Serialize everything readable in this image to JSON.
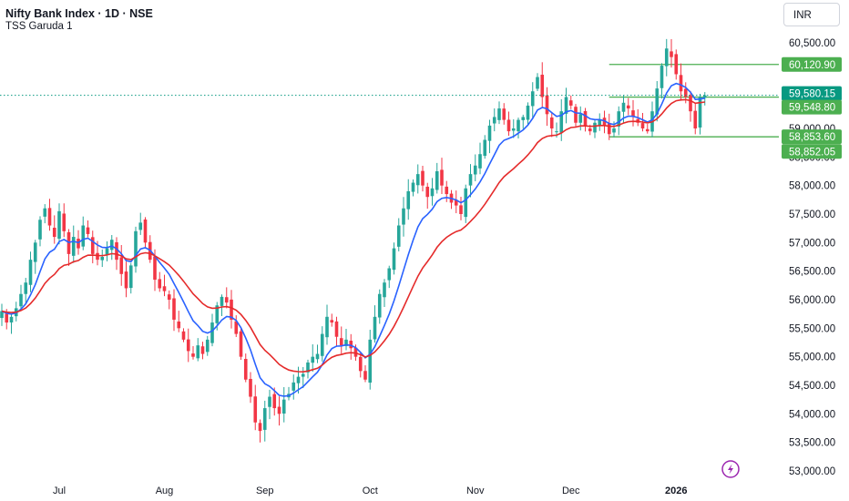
{
  "header": {
    "title": "Nifty Bank Index · 1D · NSE",
    "indicator": "TSS Garuda 1",
    "currency": "INR"
  },
  "colors": {
    "up": "#26a69a",
    "down": "#f23645",
    "ema_fast": "#2962ff",
    "ema_slow": "#e52b2b",
    "level_line": "#4caf50",
    "last_price": "#089981"
  },
  "chart_data": {
    "type": "candlestick",
    "ylim": [
      52800,
      60900
    ],
    "y_ticks": [
      "60,500.00",
      "59,000.00",
      "58,500.00",
      "58,000.00",
      "57,500.00",
      "57,000.00",
      "56,500.00",
      "56,000.00",
      "55,500.00",
      "55,000.00",
      "54,500.00",
      "54,000.00",
      "53,500.00",
      "53,000.00"
    ],
    "x_labels": [
      {
        "label": "Jul",
        "index": 12,
        "bold": false
      },
      {
        "label": "Aug",
        "index": 34,
        "bold": false
      },
      {
        "label": "Sep",
        "index": 55,
        "bold": false
      },
      {
        "label": "Oct",
        "index": 77,
        "bold": false
      },
      {
        "label": "Nov",
        "index": 99,
        "bold": false
      },
      {
        "label": "Dec",
        "index": 119,
        "bold": false
      },
      {
        "label": "2026",
        "index": 141,
        "bold": true
      }
    ],
    "close": [
      55800,
      55600,
      55700,
      55850,
      56100,
      56300,
      56700,
      57000,
      57400,
      57600,
      57300,
      57100,
      57550,
      57200,
      56800,
      57100,
      56900,
      57300,
      57150,
      56800,
      56700,
      56750,
      56900,
      57050,
      56700,
      56450,
      56200,
      56600,
      57200,
      57350,
      57000,
      56700,
      56350,
      56200,
      56150,
      56000,
      55650,
      55500,
      55300,
      55100,
      55000,
      55200,
      55050,
      55300,
      55600,
      55900,
      56050,
      55950,
      55650,
      55400,
      55000,
      54600,
      54300,
      53850,
      53700,
      54100,
      54300,
      54100,
      54000,
      54250,
      54350,
      54550,
      54650,
      54700,
      54900,
      55000,
      55050,
      55400,
      55700,
      55600,
      55350,
      55200,
      55300,
      55150,
      55000,
      54750,
      54600,
      55300,
      55700,
      56100,
      56300,
      56550,
      56900,
      57300,
      57600,
      57900,
      58050,
      58200,
      58000,
      57800,
      57950,
      58250,
      58000,
      57850,
      57700,
      57650,
      57500,
      57950,
      58200,
      58350,
      58550,
      58800,
      59050,
      59200,
      59350,
      59150,
      58950,
      59000,
      59150,
      59200,
      59400,
      59650,
      59900,
      59550,
      59250,
      59000,
      58950,
      59300,
      59550,
      59400,
      59100,
      59250,
      59050,
      58950,
      59100,
      59150,
      59050,
      58900,
      59000,
      59300,
      59450,
      59350,
      59200,
      59100,
      59000,
      58950,
      59300,
      59700,
      60100,
      60400,
      60250,
      59950,
      59650,
      59550,
      59300,
      59000,
      59550,
      59580.15
    ],
    "lines": {
      "ema_fast_label": "",
      "ema_slow_label": ""
    },
    "levels": [
      {
        "value": 60120.9,
        "label": "60,120.90",
        "start_index": 127
      },
      {
        "value": 59548.8,
        "label": "59,548.80",
        "start_index": 127
      },
      {
        "value": 58853.6,
        "label": "58,853.60",
        "start_index": 127
      },
      {
        "value": 58852.05,
        "label": "58,852.05",
        "start_index": null
      }
    ],
    "last_price": {
      "value": 59580.15,
      "label": "59,580.15"
    }
  }
}
